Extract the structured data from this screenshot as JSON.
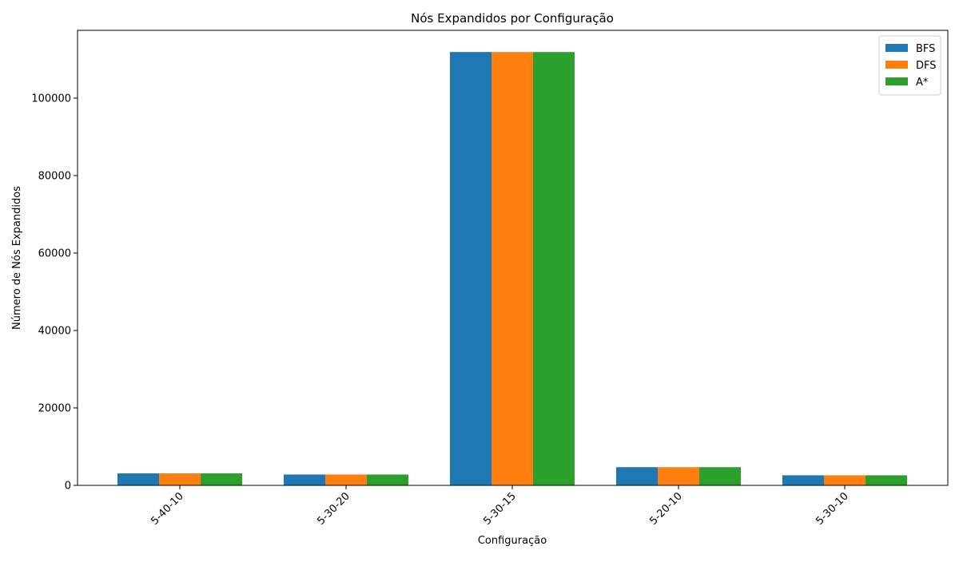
{
  "chart_data": {
    "type": "bar",
    "title": "Nós Expandidos por Configuração",
    "xlabel": "Configuração",
    "ylabel": "Número de Nós Expandidos",
    "categories": [
      "5-40-10",
      "5-30-20",
      "5-30-15",
      "5-20-10",
      "5-30-10"
    ],
    "series": [
      {
        "name": "BFS",
        "color": "#1f77b4",
        "values": [
          3100,
          2800,
          111900,
          4700,
          2600
        ]
      },
      {
        "name": "DFS",
        "color": "#ff7f0e",
        "values": [
          3100,
          2800,
          111900,
          4700,
          2600
        ]
      },
      {
        "name": "A*",
        "color": "#2ca02c",
        "values": [
          3100,
          2800,
          111900,
          4700,
          2600
        ]
      }
    ],
    "yticks": [
      0,
      20000,
      40000,
      60000,
      80000,
      100000
    ],
    "ylim": [
      0,
      117500
    ],
    "grid": false,
    "legend_position": "top-right",
    "tick_label_rotation": 45
  }
}
